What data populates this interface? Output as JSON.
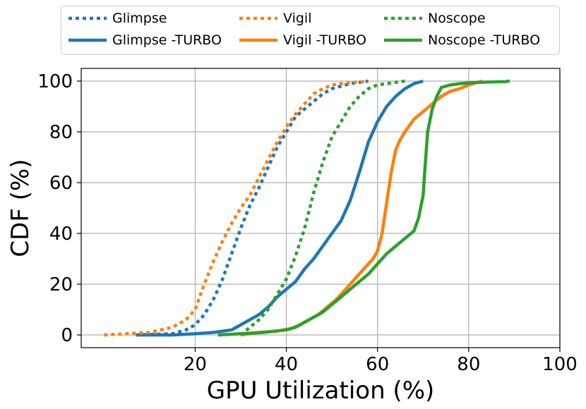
{
  "chart_data": {
    "type": "line",
    "xlabel": "GPU Utilization (%)",
    "ylabel": "CDF (%)",
    "xlim": [
      -5,
      100
    ],
    "ylim": [
      -5,
      105
    ],
    "xticks": [
      20,
      40,
      60,
      80,
      100
    ],
    "yticks": [
      0,
      20,
      40,
      60,
      80,
      100
    ],
    "grid": true,
    "legend_position": "top, above plot",
    "series": [
      {
        "name": "Glimpse",
        "color": "#1f77b4",
        "style": "dotted",
        "x": [
          7,
          15,
          18,
          20,
          22,
          24,
          26,
          28,
          30,
          32,
          34,
          36,
          38,
          40,
          42,
          44,
          46,
          48,
          50,
          52,
          54,
          56,
          58
        ],
        "y": [
          0,
          0.5,
          2,
          4,
          8,
          14,
          22,
          32,
          42,
          51,
          58,
          66,
          74,
          80,
          86,
          89,
          92,
          95,
          97,
          98,
          99,
          99.5,
          100
        ]
      },
      {
        "name": "Glimpse -TURBO",
        "color": "#1f77b4",
        "style": "solid",
        "x": [
          7,
          15,
          20,
          24,
          26,
          28,
          30,
          32,
          34,
          36,
          38,
          40,
          42,
          44,
          46,
          48,
          50,
          52,
          54,
          56,
          58,
          60,
          62,
          64,
          66,
          68,
          70
        ],
        "y": [
          0,
          0,
          0.5,
          1,
          1.5,
          2,
          4,
          6,
          8,
          11,
          15,
          18,
          21,
          26,
          30,
          35,
          40,
          45,
          53,
          64,
          76,
          84,
          90,
          94,
          97,
          99,
          100
        ]
      },
      {
        "name": "Vigil",
        "color": "#ff7f0e",
        "style": "dotted",
        "x": [
          0,
          5,
          10,
          15,
          18,
          20,
          22,
          24,
          26,
          28,
          30,
          32,
          34,
          36,
          38,
          40,
          42,
          44,
          46,
          48,
          50,
          52,
          55,
          58
        ],
        "y": [
          0,
          0.5,
          1,
          3,
          6,
          10,
          20,
          29,
          37,
          44,
          50,
          55,
          62,
          69,
          76,
          82,
          87,
          91,
          95,
          97,
          98.5,
          99,
          99.5,
          100
        ]
      },
      {
        "name": "Vigil -TURBO",
        "color": "#ff7f0e",
        "style": "solid",
        "x": [
          30,
          34,
          38,
          41,
          43,
          45,
          47,
          49,
          51,
          53,
          55,
          57,
          59,
          60,
          61,
          62,
          63,
          64,
          65,
          66,
          68,
          70,
          72,
          74,
          76,
          78,
          80,
          82,
          83
        ],
        "y": [
          0,
          1,
          1.5,
          2.5,
          4,
          6,
          8,
          11,
          14,
          18,
          22,
          26,
          30,
          33,
          40,
          52,
          64,
          73,
          77,
          80,
          85,
          88,
          91,
          94,
          96,
          97,
          98.5,
          99.5,
          100
        ]
      },
      {
        "name": "Noscope",
        "color": "#2ca02c",
        "style": "dotted",
        "x": [
          30,
          32,
          34,
          36,
          38,
          40,
          42,
          44,
          46,
          48,
          50,
          52,
          54,
          56,
          58,
          60,
          62,
          64,
          66
        ],
        "y": [
          0,
          3,
          6,
          10,
          16,
          22,
          31,
          42,
          56,
          68,
          78,
          84,
          90,
          94,
          97,
          98.5,
          99,
          99.5,
          100
        ]
      },
      {
        "name": "Noscope -TURBO",
        "color": "#2ca02c",
        "style": "solid",
        "x": [
          25,
          30,
          35,
          40,
          42,
          44,
          46,
          48,
          50,
          52,
          54,
          56,
          58,
          60,
          62,
          64,
          66,
          68,
          69,
          70,
          70.5,
          71,
          72,
          73,
          74,
          76,
          78,
          80,
          84,
          88,
          89
        ],
        "y": [
          0,
          0.5,
          1,
          2,
          3,
          5,
          7,
          9,
          12,
          15,
          18,
          21,
          24,
          28,
          32,
          35,
          38,
          41,
          46,
          55,
          68,
          80,
          89,
          94,
          97.5,
          98.5,
          99,
          99.3,
          99.6,
          99.8,
          100
        ]
      }
    ]
  }
}
